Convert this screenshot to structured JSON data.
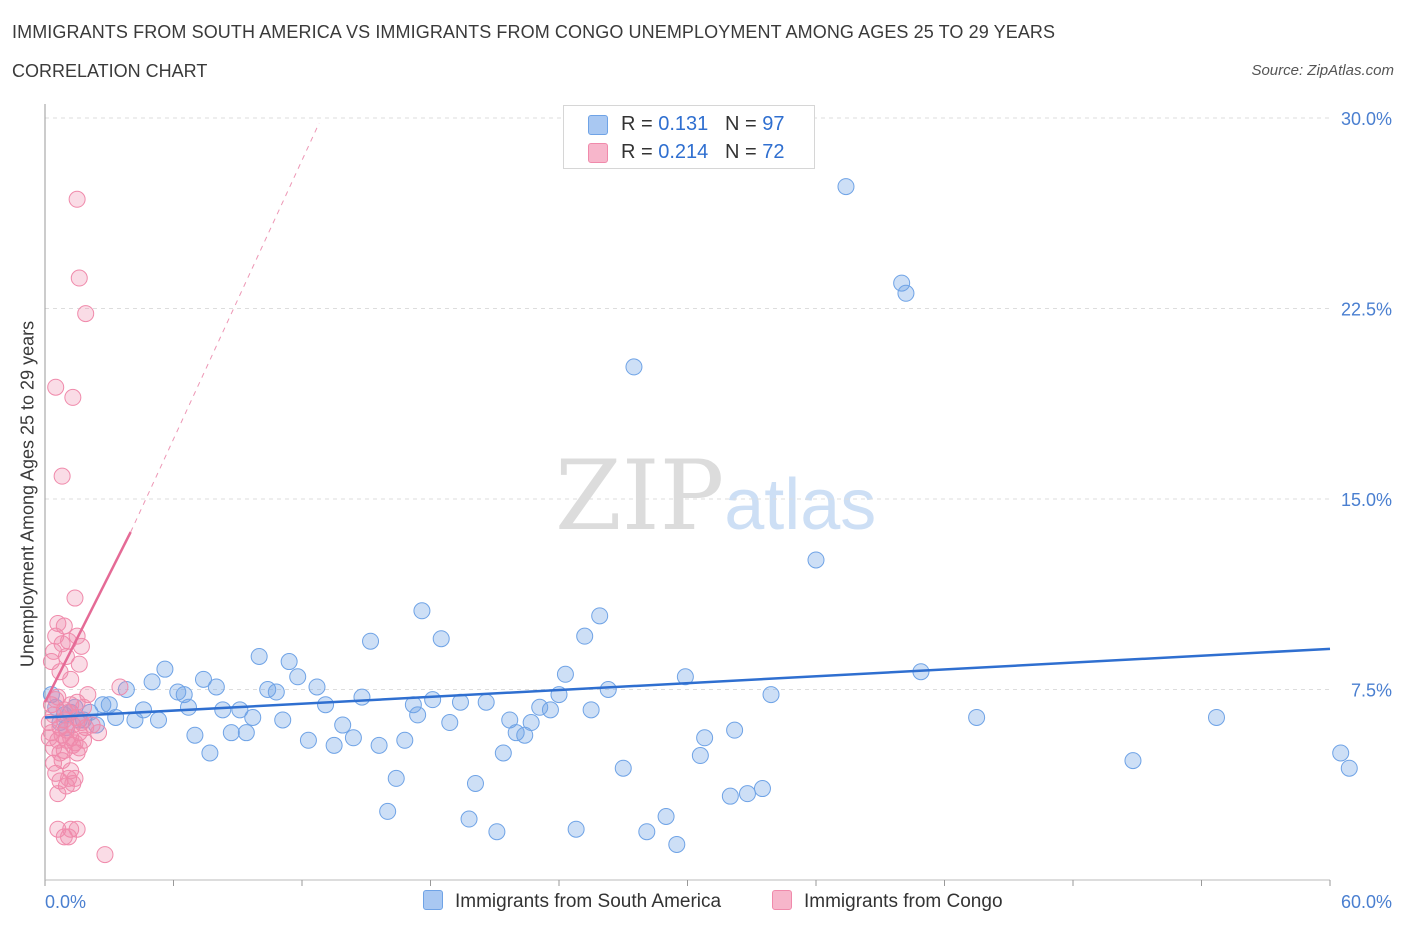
{
  "header": {
    "title": "IMMIGRANTS FROM SOUTH AMERICA VS IMMIGRANTS FROM CONGO UNEMPLOYMENT AMONG AGES 25 TO 29 YEARS",
    "subtitle": "CORRELATION CHART",
    "source": "Source: ZipAtlas.com"
  },
  "watermark": {
    "zip": "ZIP",
    "atlas": "atlas"
  },
  "legend": {
    "rows": [
      {
        "r_label": "R = ",
        "r_value": "0.131",
        "n_label": "N = ",
        "n_value": "97",
        "color": "#a9c8f2"
      },
      {
        "r_label": "R = ",
        "r_value": "0.214",
        "n_label": "N = ",
        "n_value": "72",
        "color": "#f7b6cb"
      }
    ]
  },
  "bottom_legend": {
    "series1": "Immigrants from South America",
    "series2": "Immigrants from Congo"
  },
  "chart_data": {
    "type": "scatter",
    "ylabel": "Unemployment Among Ages 25 to 29 years",
    "xlim": [
      0,
      60
    ],
    "ylim": [
      0,
      30
    ],
    "x_tick_labels": [
      "0.0%",
      "60.0%"
    ],
    "y_ticks": [
      7.5,
      15.0,
      22.5,
      30.0
    ],
    "y_tick_labels": [
      "7.5%",
      "15.0%",
      "22.5%",
      "30.0%"
    ],
    "grid": true,
    "colors": {
      "south_america": "#6fa3e6",
      "south_america_line": "#2f6fd0",
      "congo": "#f08aab",
      "congo_line": "#e56b96"
    },
    "series": [
      {
        "name": "Immigrants from South America",
        "points": [
          [
            0.3,
            7.3
          ],
          [
            0.5,
            6.8
          ],
          [
            0.7,
            6.2
          ],
          [
            0.9,
            6.5
          ],
          [
            1.0,
            6.0
          ],
          [
            1.2,
            6.6
          ],
          [
            1.4,
            6.8
          ],
          [
            1.6,
            6.3
          ],
          [
            1.8,
            6.3
          ],
          [
            2.1,
            6.6
          ],
          [
            2.4,
            6.1
          ],
          [
            2.7,
            6.9
          ],
          [
            3.0,
            6.9
          ],
          [
            3.3,
            6.4
          ],
          [
            3.8,
            7.5
          ],
          [
            4.2,
            6.3
          ],
          [
            4.6,
            6.7
          ],
          [
            5.0,
            7.8
          ],
          [
            5.3,
            6.3
          ],
          [
            5.6,
            8.3
          ],
          [
            6.2,
            7.4
          ],
          [
            6.5,
            7.3
          ],
          [
            6.7,
            6.8
          ],
          [
            7.0,
            5.7
          ],
          [
            7.4,
            7.9
          ],
          [
            7.7,
            5.0
          ],
          [
            8.0,
            7.6
          ],
          [
            8.3,
            6.7
          ],
          [
            8.7,
            5.8
          ],
          [
            9.1,
            6.7
          ],
          [
            9.4,
            5.8
          ],
          [
            9.7,
            6.4
          ],
          [
            10.0,
            8.8
          ],
          [
            10.4,
            7.5
          ],
          [
            10.8,
            7.4
          ],
          [
            11.1,
            6.3
          ],
          [
            11.4,
            8.6
          ],
          [
            11.8,
            8.0
          ],
          [
            12.3,
            5.5
          ],
          [
            12.7,
            7.6
          ],
          [
            13.1,
            6.9
          ],
          [
            13.5,
            5.3
          ],
          [
            13.9,
            6.1
          ],
          [
            14.4,
            5.6
          ],
          [
            14.8,
            7.2
          ],
          [
            15.2,
            9.4
          ],
          [
            15.6,
            5.3
          ],
          [
            16.0,
            2.7
          ],
          [
            16.4,
            4.0
          ],
          [
            16.8,
            5.5
          ],
          [
            17.2,
            6.9
          ],
          [
            17.4,
            6.5
          ],
          [
            17.6,
            10.6
          ],
          [
            18.1,
            7.1
          ],
          [
            18.5,
            9.5
          ],
          [
            18.9,
            6.2
          ],
          [
            19.4,
            7.0
          ],
          [
            19.8,
            2.4
          ],
          [
            20.1,
            3.8
          ],
          [
            20.6,
            7.0
          ],
          [
            21.1,
            1.9
          ],
          [
            21.4,
            5.0
          ],
          [
            21.7,
            6.3
          ],
          [
            22.0,
            5.8
          ],
          [
            22.4,
            5.7
          ],
          [
            22.7,
            6.2
          ],
          [
            23.1,
            6.8
          ],
          [
            23.6,
            6.7
          ],
          [
            24.0,
            7.3
          ],
          [
            24.3,
            8.1
          ],
          [
            24.8,
            2.0
          ],
          [
            25.2,
            9.6
          ],
          [
            25.5,
            6.7
          ],
          [
            25.9,
            10.4
          ],
          [
            26.3,
            7.5
          ],
          [
            27.0,
            4.4
          ],
          [
            27.5,
            20.2
          ],
          [
            28.1,
            1.9
          ],
          [
            29.0,
            2.5
          ],
          [
            29.5,
            1.4
          ],
          [
            29.9,
            8.0
          ],
          [
            30.6,
            4.9
          ],
          [
            30.8,
            5.6
          ],
          [
            32.0,
            3.3
          ],
          [
            32.2,
            5.9
          ],
          [
            32.8,
            3.4
          ],
          [
            33.5,
            3.6
          ],
          [
            33.9,
            7.3
          ],
          [
            36.0,
            12.6
          ],
          [
            37.4,
            27.3
          ],
          [
            40.0,
            23.5
          ],
          [
            40.2,
            23.1
          ],
          [
            40.9,
            8.2
          ],
          [
            43.5,
            6.4
          ],
          [
            50.8,
            4.7
          ],
          [
            54.7,
            6.4
          ],
          [
            60.5,
            5.0
          ],
          [
            60.9,
            4.4
          ]
        ],
        "trend": {
          "x": [
            0,
            60
          ],
          "y": [
            6.4,
            9.1
          ]
        }
      },
      {
        "name": "Immigrants from Congo",
        "points": [
          [
            0.2,
            6.2
          ],
          [
            0.3,
            5.8
          ],
          [
            0.4,
            6.5
          ],
          [
            0.5,
            7.1
          ],
          [
            0.6,
            5.5
          ],
          [
            0.7,
            6.0
          ],
          [
            0.8,
            5.7
          ],
          [
            0.9,
            6.3
          ],
          [
            1.0,
            5.9
          ],
          [
            1.1,
            6.6
          ],
          [
            1.2,
            5.6
          ],
          [
            1.3,
            6.1
          ],
          [
            1.4,
            5.4
          ],
          [
            1.5,
            6.4
          ],
          [
            1.6,
            5.8
          ],
          [
            1.7,
            6.2
          ],
          [
            1.8,
            5.5
          ],
          [
            1.9,
            6.0
          ],
          [
            2.0,
            7.3
          ],
          [
            0.3,
            8.6
          ],
          [
            0.4,
            9.0
          ],
          [
            0.5,
            9.6
          ],
          [
            0.6,
            10.1
          ],
          [
            0.7,
            8.2
          ],
          [
            0.8,
            9.3
          ],
          [
            0.9,
            10.0
          ],
          [
            1.0,
            8.8
          ],
          [
            1.1,
            9.4
          ],
          [
            1.2,
            7.9
          ],
          [
            1.4,
            11.1
          ],
          [
            1.5,
            9.6
          ],
          [
            1.6,
            8.5
          ],
          [
            1.7,
            9.2
          ],
          [
            0.4,
            4.6
          ],
          [
            0.5,
            4.2
          ],
          [
            0.6,
            3.4
          ],
          [
            0.7,
            3.9
          ],
          [
            0.8,
            4.7
          ],
          [
            0.9,
            5.1
          ],
          [
            1.0,
            3.7
          ],
          [
            1.1,
            4.0
          ],
          [
            1.2,
            4.3
          ],
          [
            1.3,
            3.8
          ],
          [
            1.4,
            4.0
          ],
          [
            1.5,
            5.0
          ],
          [
            1.6,
            5.2
          ],
          [
            0.6,
            2.0
          ],
          [
            0.9,
            1.7
          ],
          [
            1.2,
            2.0
          ],
          [
            1.5,
            2.0
          ],
          [
            1.1,
            1.7
          ],
          [
            2.8,
            1.0
          ],
          [
            0.5,
            19.4
          ],
          [
            1.3,
            19.0
          ],
          [
            0.8,
            15.9
          ],
          [
            1.5,
            26.8
          ],
          [
            1.6,
            23.7
          ],
          [
            1.9,
            22.3
          ],
          [
            0.3,
            6.9
          ],
          [
            0.6,
            7.2
          ],
          [
            0.9,
            6.7
          ],
          [
            1.2,
            6.9
          ],
          [
            1.5,
            7.0
          ],
          [
            1.8,
            6.8
          ],
          [
            0.4,
            5.2
          ],
          [
            0.7,
            5.0
          ],
          [
            1.0,
            5.5
          ],
          [
            1.3,
            5.3
          ],
          [
            3.5,
            7.6
          ],
          [
            2.2,
            6.1
          ],
          [
            2.5,
            5.8
          ],
          [
            0.2,
            5.6
          ]
        ],
        "trend": {
          "x": [
            0,
            4
          ],
          "y": [
            7.0,
            13.7
          ]
        },
        "trend_extension": {
          "x": [
            4,
            12.8
          ],
          "y": [
            13.7,
            29.8
          ]
        }
      }
    ]
  }
}
